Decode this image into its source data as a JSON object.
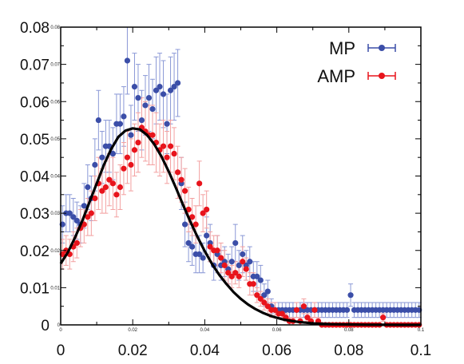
{
  "chart_data": {
    "type": "scatter",
    "title": "",
    "xlabel": "",
    "ylabel": "",
    "xlim": [
      0,
      0.1
    ],
    "ylim": [
      0,
      0.08
    ],
    "x_ticks": [
      "0",
      "0.02",
      "0.04",
      "0.06",
      "0.08",
      "0.1"
    ],
    "y_ticks": [
      "0",
      "0.01",
      "0.02",
      "0.03",
      "0.04",
      "0.05",
      "0.06",
      "0.07",
      "0.08"
    ],
    "inner_x_ticks": [
      "0",
      "0.02",
      "0.04",
      "0.06",
      "0.08",
      "0.1"
    ],
    "inner_y_ticks": [
      "0",
      "0.01",
      "0.02",
      "0.03",
      "0.04",
      "0.05",
      "0.06",
      "0.07",
      "0.08"
    ],
    "grid": false,
    "legend_position": "top-right",
    "legend": [
      {
        "label": "MP",
        "color": "#3b4ea8"
      },
      {
        "label": "AMP",
        "color": "#e8141c"
      }
    ],
    "series": [
      {
        "name": "MP",
        "color": "#3b4ea8",
        "x": [
          0.0005,
          0.0015,
          0.0025,
          0.0035,
          0.0045,
          0.0055,
          0.0065,
          0.0075,
          0.0085,
          0.0095,
          0.0105,
          0.0115,
          0.0125,
          0.0135,
          0.0145,
          0.0155,
          0.0165,
          0.0175,
          0.0185,
          0.0195,
          0.0205,
          0.0215,
          0.0225,
          0.0235,
          0.0245,
          0.0255,
          0.0265,
          0.0275,
          0.0285,
          0.0295,
          0.0305,
          0.0315,
          0.0325,
          0.0335,
          0.0345,
          0.0355,
          0.0365,
          0.0375,
          0.0385,
          0.0395,
          0.0405,
          0.0415,
          0.0425,
          0.0435,
          0.0445,
          0.0455,
          0.0465,
          0.0475,
          0.0485,
          0.0495,
          0.0505,
          0.0515,
          0.0525,
          0.0535,
          0.0545,
          0.0555,
          0.0565,
          0.0575,
          0.0585,
          0.0595,
          0.0605,
          0.0615,
          0.0625,
          0.0635,
          0.0645,
          0.0655,
          0.0665,
          0.0675,
          0.0685,
          0.0695,
          0.0705,
          0.0715,
          0.0725,
          0.0735,
          0.0745,
          0.0755,
          0.0765,
          0.0775,
          0.0785,
          0.0795,
          0.0805,
          0.0815,
          0.0825,
          0.0835,
          0.0845,
          0.0855,
          0.0865,
          0.0875,
          0.0885,
          0.0895,
          0.0905,
          0.0915,
          0.0925,
          0.0935,
          0.0945,
          0.0955,
          0.0965,
          0.0975,
          0.0985,
          0.0995
        ],
        "y": [
          0.027,
          0.03,
          0.03,
          0.029,
          0.028,
          0.027,
          0.032,
          0.037,
          0.034,
          0.043,
          0.055,
          0.045,
          0.048,
          0.048,
          0.046,
          0.054,
          0.054,
          0.056,
          0.071,
          0.051,
          0.064,
          0.061,
          0.055,
          0.059,
          0.061,
          0.058,
          0.063,
          0.064,
          0.062,
          0.054,
          0.063,
          0.064,
          0.065,
          0.038,
          0.027,
          0.022,
          0.021,
          0.019,
          0.019,
          0.018,
          0.024,
          0.022,
          0.016,
          0.019,
          0.016,
          0.017,
          0.015,
          0.017,
          0.022,
          0.016,
          0.019,
          0.016,
          0.017,
          0.013,
          0.013,
          0.012,
          0.008,
          0.009,
          0.005,
          0.004,
          0.004,
          0.004,
          0.004,
          0.004,
          0.004,
          0.004,
          0.004,
          0.004,
          0.004,
          0.004,
          0.004,
          0.004,
          0.004,
          0.004,
          0.004,
          0.004,
          0.004,
          0.004,
          0.004,
          0.004,
          0.008,
          0.004,
          0.004,
          0.004,
          0.004,
          0.004,
          0.004,
          0.004,
          0.004,
          0.004,
          0.004,
          0.004,
          0.004,
          0.004,
          0.004,
          0.004,
          0.004,
          0.004,
          0.004,
          0.004
        ],
        "yerr": [
          0.005,
          0.005,
          0.005,
          0.005,
          0.005,
          0.005,
          0.006,
          0.006,
          0.006,
          0.007,
          0.008,
          0.007,
          0.007,
          0.007,
          0.007,
          0.008,
          0.008,
          0.008,
          0.009,
          0.008,
          0.009,
          0.009,
          0.008,
          0.008,
          0.009,
          0.008,
          0.009,
          0.009,
          0.009,
          0.008,
          0.009,
          0.009,
          0.009,
          0.007,
          0.006,
          0.005,
          0.005,
          0.005,
          0.005,
          0.004,
          0.005,
          0.005,
          0.004,
          0.005,
          0.004,
          0.004,
          0.004,
          0.004,
          0.005,
          0.004,
          0.005,
          0.004,
          0.004,
          0.004,
          0.004,
          0.004,
          0.003,
          0.003,
          0.002,
          0.002,
          0.002,
          0.002,
          0.002,
          0.002,
          0.002,
          0.002,
          0.002,
          0.002,
          0.002,
          0.002,
          0.002,
          0.002,
          0.002,
          0.002,
          0.002,
          0.002,
          0.002,
          0.002,
          0.002,
          0.002,
          0.003,
          0.002,
          0.002,
          0.002,
          0.002,
          0.002,
          0.002,
          0.002,
          0.002,
          0.002,
          0.002,
          0.002,
          0.002,
          0.002,
          0.002,
          0.002,
          0.002,
          0.002,
          0.002,
          0.002
        ]
      },
      {
        "name": "AMP",
        "color": "#e8141c",
        "x": [
          0.0005,
          0.0015,
          0.0025,
          0.0035,
          0.0045,
          0.0055,
          0.0065,
          0.0075,
          0.0085,
          0.0095,
          0.0105,
          0.0115,
          0.0125,
          0.0135,
          0.0145,
          0.0155,
          0.0165,
          0.0175,
          0.0185,
          0.0195,
          0.0205,
          0.0215,
          0.0225,
          0.0235,
          0.0245,
          0.0255,
          0.0265,
          0.0275,
          0.0285,
          0.0295,
          0.0305,
          0.0315,
          0.0325,
          0.0335,
          0.0345,
          0.0355,
          0.0365,
          0.0375,
          0.0385,
          0.0395,
          0.0405,
          0.0415,
          0.0425,
          0.0435,
          0.0445,
          0.0455,
          0.0465,
          0.0475,
          0.0485,
          0.0495,
          0.0505,
          0.0515,
          0.0525,
          0.0535,
          0.0545,
          0.0555,
          0.0565,
          0.0575,
          0.0585,
          0.0595,
          0.0605,
          0.0615,
          0.0625,
          0.0635,
          0.0645,
          0.0655,
          0.0665,
          0.0675,
          0.0685,
          0.0695,
          0.0705,
          0.0715,
          0.0725,
          0.0735,
          0.0745,
          0.0755,
          0.0765,
          0.0775,
          0.0785,
          0.0795,
          0.0805,
          0.0815,
          0.0825,
          0.0835,
          0.0845,
          0.0855,
          0.0865,
          0.0875,
          0.0885,
          0.0895,
          0.0905,
          0.0915,
          0.0925,
          0.0935,
          0.0945,
          0.0955,
          0.0965,
          0.0975,
          0.0985,
          0.0995
        ],
        "y": [
          0.019,
          0.02,
          0.019,
          0.021,
          0.022,
          0.026,
          0.027,
          0.029,
          0.03,
          0.034,
          0.038,
          0.036,
          0.037,
          0.039,
          0.038,
          0.035,
          0.037,
          0.042,
          0.045,
          0.043,
          0.047,
          0.049,
          0.053,
          0.052,
          0.051,
          0.051,
          0.049,
          0.047,
          0.048,
          0.045,
          0.048,
          0.046,
          0.041,
          0.039,
          0.036,
          0.031,
          0.029,
          0.027,
          0.038,
          0.03,
          0.031,
          0.021,
          0.02,
          0.02,
          0.018,
          0.016,
          0.014,
          0.013,
          0.014,
          0.013,
          0.017,
          0.015,
          0.011,
          0.011,
          0.008,
          0.007,
          0.006,
          0.005,
          0.004,
          0.004,
          0.003,
          0.003,
          0.002,
          0.001,
          0.001,
          0.004,
          0.001,
          0.005,
          0.002,
          0.001,
          0.004,
          0.001,
          0.0,
          0.0,
          0.0,
          0.0,
          0.0,
          0.0,
          0.0,
          0.0,
          0.0,
          0.0,
          0.0,
          0.0,
          0.0,
          0.0,
          0.0,
          0.0,
          0.0,
          0.002,
          0.0,
          0.0,
          0.0,
          0.0,
          0.0,
          0.0,
          0.0,
          0.0,
          0.0,
          0.0
        ],
        "yerr": [
          0.004,
          0.004,
          0.004,
          0.004,
          0.004,
          0.005,
          0.005,
          0.005,
          0.006,
          0.006,
          0.007,
          0.006,
          0.007,
          0.007,
          0.007,
          0.006,
          0.006,
          0.007,
          0.007,
          0.007,
          0.007,
          0.008,
          0.008,
          0.008,
          0.008,
          0.008,
          0.008,
          0.007,
          0.007,
          0.007,
          0.007,
          0.007,
          0.007,
          0.006,
          0.006,
          0.006,
          0.005,
          0.005,
          0.006,
          0.005,
          0.005,
          0.004,
          0.004,
          0.004,
          0.004,
          0.004,
          0.003,
          0.003,
          0.003,
          0.003,
          0.004,
          0.003,
          0.003,
          0.003,
          0.002,
          0.002,
          0.002,
          0.002,
          0.002,
          0.002,
          0.001,
          0.001,
          0.001,
          0.001,
          0.001,
          0.002,
          0.001,
          0.002,
          0.001,
          0.001,
          0.002,
          0.001,
          0.0,
          0.0,
          0.0,
          0.0,
          0.0,
          0.0,
          0.0,
          0.0,
          0.0,
          0.0,
          0.0,
          0.0,
          0.0,
          0.0,
          0.0,
          0.0,
          0.0,
          0.001,
          0.0,
          0.0,
          0.0,
          0.0,
          0.0,
          0.0,
          0.0,
          0.0,
          0.0,
          0.0
        ]
      },
      {
        "type": "line",
        "color": "#000000",
        "x": [
          0.0,
          0.002,
          0.004,
          0.006,
          0.008,
          0.01,
          0.012,
          0.014,
          0.016,
          0.018,
          0.02,
          0.022,
          0.024,
          0.026,
          0.028,
          0.03,
          0.032,
          0.034,
          0.036,
          0.038,
          0.04,
          0.042,
          0.044,
          0.046,
          0.048,
          0.05,
          0.052,
          0.054,
          0.056,
          0.058,
          0.06,
          0.062,
          0.064,
          0.066,
          0.068,
          0.07,
          0.075,
          0.08,
          0.085,
          0.09,
          0.095,
          0.1
        ],
        "y": [
          0.0165,
          0.0195,
          0.0235,
          0.028,
          0.033,
          0.038,
          0.043,
          0.0472,
          0.0505,
          0.0522,
          0.0528,
          0.0525,
          0.051,
          0.0485,
          0.0452,
          0.0412,
          0.0368,
          0.0322,
          0.0277,
          0.0236,
          0.0198,
          0.0164,
          0.0135,
          0.011,
          0.0088,
          0.007,
          0.0055,
          0.0043,
          0.0033,
          0.0025,
          0.0019,
          0.0014,
          0.0011,
          0.0008,
          0.0006,
          0.0004,
          0.0002,
          0.0001,
          5e-05,
          2e-05,
          1e-05,
          0.0
        ]
      }
    ]
  }
}
